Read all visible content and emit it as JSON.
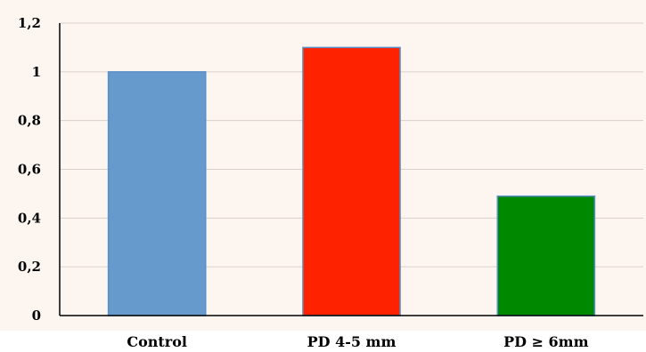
{
  "chart_data": {
    "type": "bar",
    "title": "",
    "xlabel": "",
    "ylabel": "",
    "categories": [
      "Control",
      "PD 4-5 mm",
      "PD ≥ 6mm"
    ],
    "values": [
      1.0,
      1.1,
      0.49
    ],
    "bar_colors": [
      "#6699cc",
      "#ff2200",
      "#008800"
    ],
    "ylim": [
      0,
      1.2
    ],
    "yticks": [
      0,
      0.2,
      0.4,
      0.6,
      0.8,
      1,
      1.2
    ],
    "ytick_labels": [
      "0",
      "0,2",
      "0,4",
      "0,6",
      "0,8",
      "1",
      "1,2"
    ],
    "grid": true,
    "gridline_color": "#d9d0c8",
    "background_color": "#fdf6f0",
    "legend": "none"
  }
}
